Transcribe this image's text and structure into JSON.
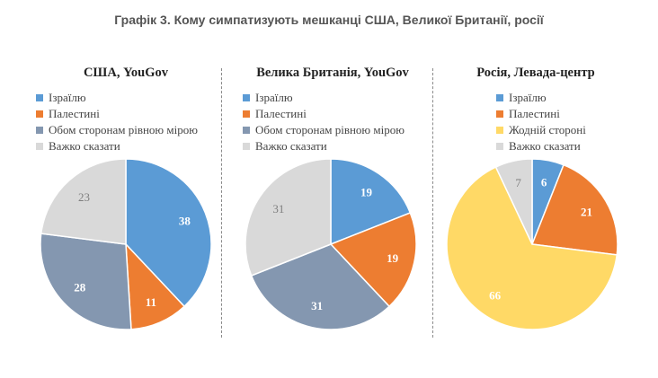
{
  "title": "Графік 3. Кому симпатизують мешканці США, Великої Британії, росії",
  "chart_data": [
    {
      "type": "pie",
      "title": "США, YouGov",
      "slices": [
        {
          "label": "Ізраїлю",
          "value": 38,
          "color": "#5b9bd5",
          "label_color": "#ffffff"
        },
        {
          "label": "Палестині",
          "value": 11,
          "color": "#ed7d31",
          "label_color": "#ffffff"
        },
        {
          "label": "Обом сторонам рівною мірою",
          "value": 28,
          "color": "#8497b0",
          "label_color": "#ffffff"
        },
        {
          "label": "Важко сказати",
          "value": 23,
          "color": "#d9d9d9",
          "label_color": "#7f7f7f"
        }
      ],
      "legend_position": "top-left"
    },
    {
      "type": "pie",
      "title": "Велика Британія, YouGov",
      "slices": [
        {
          "label": "Ізраїлю",
          "value": 19,
          "color": "#5b9bd5",
          "label_color": "#ffffff"
        },
        {
          "label": "Палестині",
          "value": 19,
          "color": "#ed7d31",
          "label_color": "#ffffff"
        },
        {
          "label": "Обом сторонам рівною мірою",
          "value": 31,
          "color": "#8497b0",
          "label_color": "#ffffff"
        },
        {
          "label": "Важко сказати",
          "value": 31,
          "color": "#d9d9d9",
          "label_color": "#7f7f7f"
        }
      ],
      "legend_position": "top-left"
    },
    {
      "type": "pie",
      "title": "Росія, Левада-центр",
      "slices": [
        {
          "label": "Ізраїлю",
          "value": 6,
          "color": "#5b9bd5",
          "label_color": "#ffffff"
        },
        {
          "label": "Палестині",
          "value": 21,
          "color": "#ed7d31",
          "label_color": "#ffffff"
        },
        {
          "label": "Жодній стороні",
          "value": 66,
          "color": "#ffd966",
          "label_color": "#ffffff"
        },
        {
          "label": "Важко сказати",
          "value": 7,
          "color": "#d9d9d9",
          "label_color": "#7f7f7f"
        }
      ],
      "legend_position": "top-left"
    }
  ]
}
